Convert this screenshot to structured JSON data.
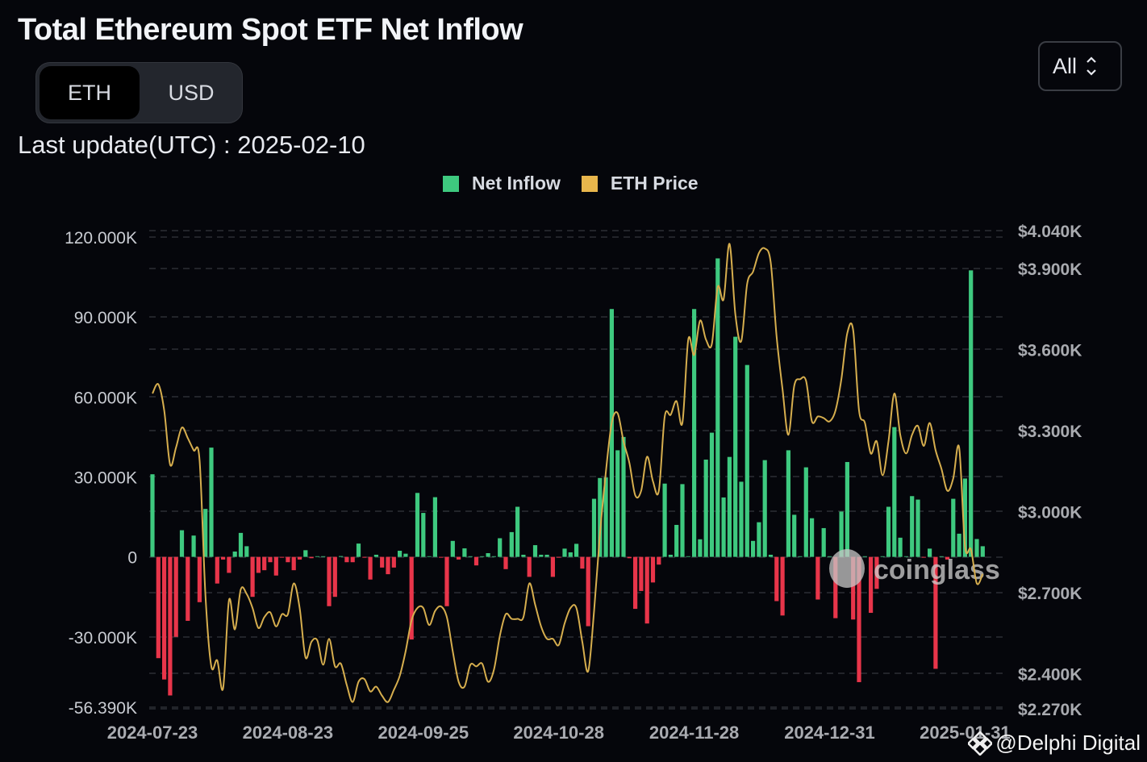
{
  "header": {
    "title": "Total Ethereum Spot ETF Net Inflow",
    "unit_toggle": [
      {
        "label": "ETH",
        "active": true
      },
      {
        "label": "USD",
        "active": false
      }
    ],
    "last_update": "Last update(UTC) : 2025-02-10",
    "range_select": {
      "value": "All",
      "icon": "chevron-up-down-icon"
    }
  },
  "watermark": "coinglass",
  "credit": "@Delphi Digital",
  "colors": {
    "inflow_positive": "#3ec97f",
    "inflow_negative": "#e8354a",
    "price_line": "#d6ae4e",
    "background": "#05060b"
  },
  "chart_data": {
    "type": "bar+line",
    "legend": [
      {
        "name": "Net Inflow",
        "color": "#3ec97f"
      },
      {
        "name": "ETH Price",
        "color": "#e8b64c"
      }
    ],
    "legend_position": "top-center",
    "grid": true,
    "x_ticks": [
      {
        "label": "2024-07-23",
        "index": 0
      },
      {
        "label": "2024-08-23",
        "index": 23
      },
      {
        "label": "2024-09-25",
        "index": 46
      },
      {
        "label": "2024-10-28",
        "index": 69
      },
      {
        "label": "2024-11-28",
        "index": 92
      },
      {
        "label": "2024-12-31",
        "index": 115
      },
      {
        "label": "2025-01-31",
        "index": 138
      }
    ],
    "y_left": {
      "ylim": [
        -56390,
        120000
      ],
      "ticks": [
        120000,
        90000,
        60000,
        30000,
        0,
        -30000,
        -56390
      ],
      "tick_labels": [
        "120.000K",
        "90.000K",
        "60.000K",
        "30.000K",
        "0",
        "-30.000K",
        "-56.390K"
      ]
    },
    "y_right": {
      "ylim": [
        2270,
        4040
      ],
      "ticks": [
        4040,
        3900,
        3600,
        3300,
        3000,
        2700,
        2400,
        2270
      ],
      "tick_labels": [
        "$4.040K",
        "$3.900K",
        "$3.600K",
        "$3.300K",
        "$3.000K",
        "$2.700K",
        "$2.400K",
        "$2.270K"
      ]
    },
    "series": [
      {
        "name": "Net Inflow",
        "type": "bar",
        "axis": "left",
        "values": [
          31000,
          -38000,
          -46000,
          -52000,
          -30000,
          10000,
          -24000,
          8000,
          -17000,
          18000,
          41000,
          -10000,
          -1000,
          -6000,
          2000,
          9000,
          4000,
          -15000,
          -6000,
          -5000,
          -2000,
          -7000,
          -300,
          -2000,
          -5000,
          -1000,
          2500,
          -500,
          0,
          0,
          -18500,
          -15000,
          300,
          -2000,
          -2000,
          5000,
          -300,
          -8500,
          800,
          -4000,
          -6500,
          -4000,
          2300,
          1200,
          -31000,
          24000,
          16500,
          0,
          22400,
          -300,
          -18500,
          6000,
          -1000,
          3200,
          0,
          -3200,
          0,
          1400,
          0,
          7000,
          -4600,
          9300,
          18800,
          800,
          -7500,
          4400,
          800,
          800,
          -7500,
          -300,
          3100,
          1700,
          4900,
          -4400,
          -26000,
          21800,
          29600,
          29800,
          93000,
          40000,
          45000,
          -500,
          -19500,
          -12800,
          -25000,
          -9600,
          -2900,
          27500,
          800,
          12000,
          27300,
          0,
          93000,
          6600,
          36500,
          46600,
          112000,
          22300,
          37500,
          82600,
          28200,
          72000,
          6000,
          13000,
          36300,
          800,
          -16600,
          -22000,
          40000,
          15800,
          0,
          33600,
          14500,
          -16000,
          10800,
          0,
          -23000,
          17000,
          35600,
          -23500,
          -47000,
          0,
          -21000,
          -12000,
          0,
          18800,
          48700,
          7200,
          0,
          22800,
          21500,
          -300,
          3100,
          -42000,
          0,
          -1000,
          21800,
          8700,
          29400,
          107500,
          6700,
          4000
        ]
      },
      {
        "name": "ETH Price",
        "type": "line",
        "axis": "right",
        "values": [
          3437,
          3471,
          3374,
          3174,
          3237,
          3311,
          3272,
          3227,
          3191,
          2690,
          2427,
          2449,
          2346,
          2672,
          2564,
          2712,
          2695,
          2643,
          2569,
          2609,
          2627,
          2575,
          2620,
          2620,
          2734,
          2643,
          2460,
          2518,
          2523,
          2433,
          2529,
          2427,
          2437,
          2358,
          2295,
          2370,
          2380,
          2334,
          2352,
          2318,
          2295,
          2340,
          2392,
          2483,
          2597,
          2643,
          2643,
          2580,
          2632,
          2649,
          2609,
          2483,
          2370,
          2352,
          2433,
          2427,
          2437,
          2370,
          2415,
          2540,
          2620,
          2603,
          2603,
          2609,
          2734,
          2655,
          2575,
          2529,
          2529,
          2506,
          2586,
          2643,
          2643,
          2518,
          2409,
          2632,
          2917,
          3146,
          3328,
          3364,
          3260,
          3180,
          3060,
          3077,
          3203,
          3112,
          3077,
          3352,
          3358,
          3409,
          3328,
          3637,
          3580,
          3707,
          3637,
          3620,
          3831,
          3786,
          3991,
          3729,
          3631,
          3843,
          3888,
          3957,
          3974,
          3922,
          3648,
          3454,
          3284,
          3466,
          3490,
          3484,
          3334,
          3352,
          3346,
          3334,
          3374,
          3490,
          3660,
          3672,
          3374,
          3328,
          3215,
          3260,
          3134,
          3260,
          3437,
          3284,
          3215,
          3284,
          3317,
          3243,
          3328,
          3227,
          3158,
          3077,
          3123,
          3237,
          2871,
          2860,
          2734,
          2769
        ]
      }
    ]
  }
}
